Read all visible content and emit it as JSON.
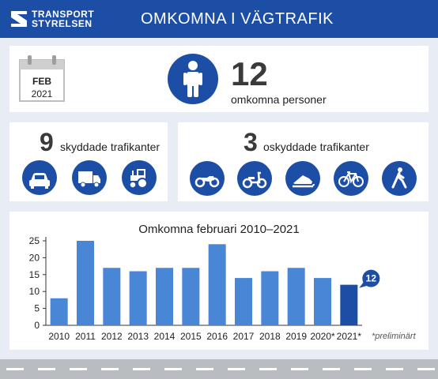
{
  "header": {
    "logo_line1": "TRANSPORT",
    "logo_line2": "STYRELSEN",
    "title": "OMKOMNA I VÄGTRAFIK"
  },
  "summary": {
    "month": "FEB",
    "year": "2021",
    "total": "12",
    "total_label": "omkomna personer"
  },
  "protected": {
    "count": "9",
    "label": "skyddade trafikanter",
    "icons": [
      "car-icon",
      "truck-icon",
      "tractor-icon"
    ]
  },
  "unprotected": {
    "count": "3",
    "label": "oskyddade trafikanter",
    "icons": [
      "motorcycle-icon",
      "moped-icon",
      "snowmobile-icon",
      "bicycle-icon",
      "pedestrian-icon"
    ]
  },
  "colors": {
    "brand": "#1c4ea6",
    "bar": "#4a86d6",
    "bar_highlight": "#1c4ea6",
    "background": "#e8edf5"
  },
  "chart_data": {
    "type": "bar",
    "title": "Omkomna februari 2010–2021",
    "categories": [
      "2010",
      "2011",
      "2012",
      "2013",
      "2014",
      "2015",
      "2016",
      "2017",
      "2018",
      "2019",
      "2020*",
      "2021*"
    ],
    "values": [
      8,
      25,
      17,
      16,
      17,
      17,
      24,
      14,
      16,
      17,
      14,
      12
    ],
    "highlight_index": 11,
    "highlight_label": "12",
    "ylim": [
      0,
      25
    ],
    "yticks": [
      "0",
      "5",
      "10",
      "15",
      "20",
      "25"
    ],
    "grid": false,
    "footnote": "*preliminärt"
  }
}
